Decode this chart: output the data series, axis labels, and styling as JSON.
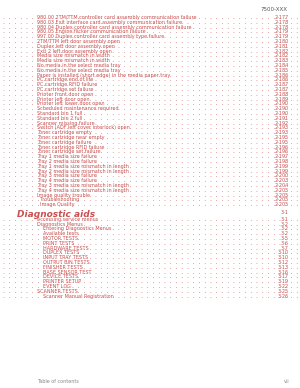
{
  "header_right": "7500-XXX",
  "bg_color": "#ffffff",
  "text_color": "#c85050",
  "footer_color": "#888888",
  "section1_entries": [
    [
      "980.00 2TM/TTM controller card assembly communication failure",
      "2-177"
    ],
    [
      "980.03 Exit interface card assembly communication failure",
      "2-178"
    ],
    [
      "980.04 Duplex controller card assembly communication failure",
      "2-178"
    ],
    [
      "980.05 Engine flicker communication failure",
      "2-179"
    ],
    [
      "997.00 Duplex controller card assembly type failure",
      "2-179"
    ],
    [
      "2TM/TTM left door assembly open",
      "2-180"
    ],
    [
      "Duplex left door assembly open",
      "2-181"
    ],
    [
      "Exit 2 left door assembly open",
      "2-182"
    ],
    [
      "Media size mismatch in width",
      "2-182"
    ],
    [
      "Media size mismatch in width",
      "2-183"
    ],
    [
      "No media in the select media tray",
      "2-184"
    ],
    [
      "No media in the select media tray",
      "2-185"
    ],
    [
      "Paper is installed (short edge) in the media paper tray",
      "2-186"
    ],
    [
      "PC cartridge end of life",
      "2-186"
    ],
    [
      "PC cartridge RFID failure",
      "2-187"
    ],
    [
      "PC cartridge set failure",
      "2-187"
    ],
    [
      "Printer front door open",
      "2-188"
    ],
    [
      "Printer left door open",
      "2-189"
    ],
    [
      "Printer left lower door open",
      "2-190"
    ],
    [
      "Scheduled maintenance required",
      "2-190"
    ],
    [
      "Standard bin 1 full",
      "2-190"
    ],
    [
      "Standard bin 2 full",
      "2-191"
    ],
    [
      "Scanner missing failure",
      "2-192"
    ],
    [
      "Switch (ADF left cover interlock) open",
      "2-193"
    ],
    [
      "Toner cartridge empty",
      "2-193"
    ],
    [
      "Toner cartridge near empty",
      "2-195"
    ],
    [
      "Toner cartridge failure",
      "2-195"
    ],
    [
      "Toner cartridge RFID failure",
      "2-196"
    ],
    [
      "Toner cartridge set failure",
      "2-196"
    ],
    [
      "Tray 1 media size failure",
      "2-197"
    ],
    [
      "Tray 2 media size failure",
      "2-198"
    ],
    [
      "Tray 1 media size mismatch in length",
      "2-199"
    ],
    [
      "Tray 2 media size mismatch in length",
      "2-199"
    ],
    [
      "Tray 3 media size failure",
      "2-200"
    ],
    [
      "Tray 4 media size failure",
      "2-203"
    ],
    [
      "Tray 3 media size mismatch in length",
      "2-204"
    ],
    [
      "Tray 4 media size mismatch in length",
      "2-205"
    ],
    [
      "Image quality trouble",
      "2-205"
    ],
    [
      "  Troubleshooting",
      "2-205"
    ],
    [
      "  Image Quality",
      "2-205"
    ]
  ],
  "section2_header": "Diagnostic aids",
  "section2_page": "3-1",
  "section2_entries": [
    [
      "Accessing service menus",
      "3-1"
    ],
    [
      "Diagnostics Menus",
      "3-2"
    ],
    [
      "    Entering Diagnostics Menus",
      "3-2"
    ],
    [
      "    Available tests",
      "3-2"
    ],
    [
      "    MOTOR TESTS",
      "3-5"
    ],
    [
      "    PRINT TESTS",
      "3-6"
    ],
    [
      "    HARDWARE TESTS",
      "3-7"
    ],
    [
      "    DUPLEX TESTS",
      "3-10"
    ],
    [
      "    INPUT TRAY TESTS",
      "3-10"
    ],
    [
      "    OUTPUT BIN TESTS",
      "3-12"
    ],
    [
      "    FINISHER TESTS",
      "3-13"
    ],
    [
      "    BASE SENSOR TEST",
      "3-16"
    ],
    [
      "    DEVICE TESTS",
      "3-17"
    ],
    [
      "    PRINTER SETUP",
      "3-19"
    ],
    [
      "    EVENT LOG",
      "3-22"
    ],
    [
      "SCANNER TESTS",
      "3-25"
    ],
    [
      "    Scanner Manual Registration",
      "3-26"
    ]
  ],
  "footer_left": "Table of contents",
  "footer_right": "vii"
}
